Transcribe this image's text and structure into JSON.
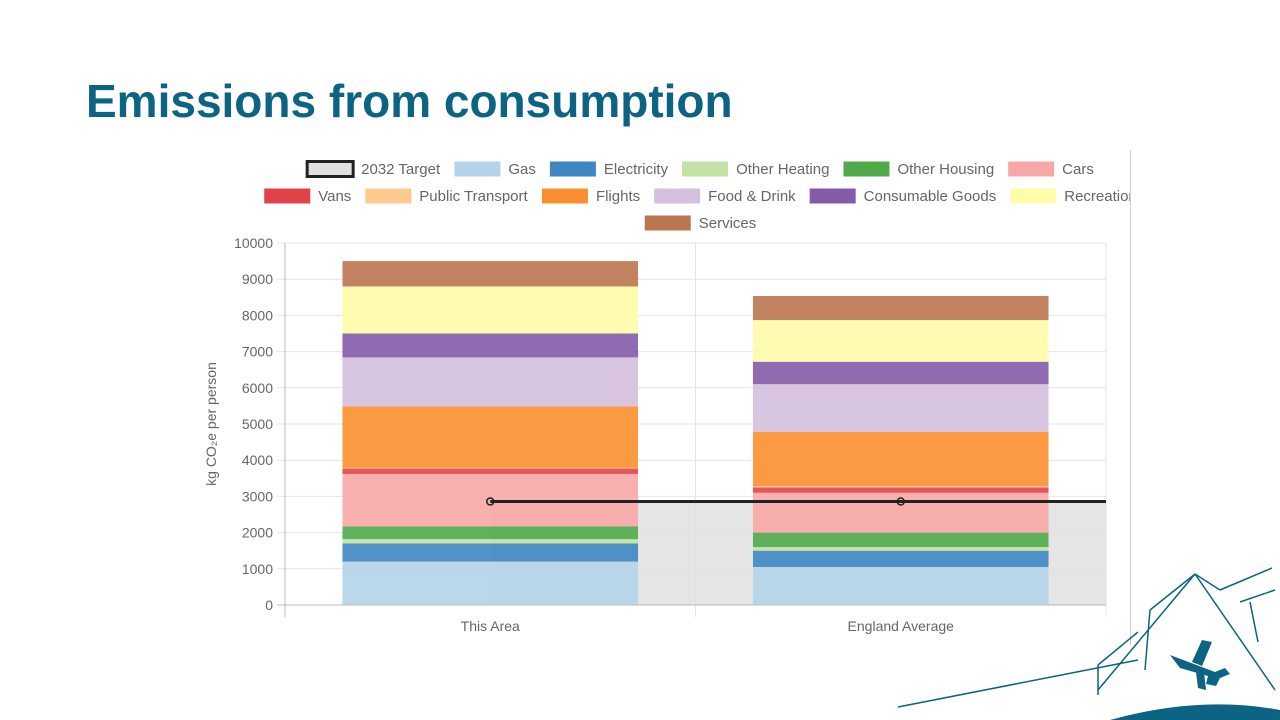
{
  "slide": {
    "title": "Emissions from consumption"
  },
  "chart_data": {
    "type": "bar",
    "stacked": true,
    "categories": [
      "This Area",
      "England Average"
    ],
    "ylabel": "kg CO₂e per person",
    "xlabel": "",
    "ylim": [
      0,
      10000
    ],
    "yticks": [
      0,
      1000,
      2000,
      3000,
      4000,
      5000,
      6000,
      7000,
      8000,
      9000,
      10000
    ],
    "grid": true,
    "legend_position": "top",
    "target": {
      "name": "2032 Target",
      "value": 2860,
      "color": "#222222",
      "fill": "#e0e0e0"
    },
    "series": [
      {
        "name": "Gas",
        "color": "#b3d4e8",
        "values": [
          1200,
          1050
        ]
      },
      {
        "name": "Electricity",
        "color": "#3e87c2",
        "values": [
          500,
          450
        ]
      },
      {
        "name": "Other Heating",
        "color": "#c2e3a3",
        "values": [
          120,
          100
        ]
      },
      {
        "name": "Other Housing",
        "color": "#4fab4a",
        "values": [
          350,
          400
        ]
      },
      {
        "name": "Cars",
        "color": "#f7a8a6",
        "values": [
          1450,
          1100
        ]
      },
      {
        "name": "Vans",
        "color": "#e24249",
        "values": [
          150,
          150
        ]
      },
      {
        "name": "Public Transport",
        "color": "#fdca8e",
        "values": [
          20,
          30
        ]
      },
      {
        "name": "Flights",
        "color": "#fb8f2f",
        "values": [
          1700,
          1500
        ]
      },
      {
        "name": "Food & Drink",
        "color": "#d4c0de",
        "values": [
          1350,
          1320
        ]
      },
      {
        "name": "Consumable Goods",
        "color": "#845ba8",
        "values": [
          660,
          620
        ]
      },
      {
        "name": "Recreation",
        "color": "#fffca8",
        "values": [
          1300,
          1150
        ]
      },
      {
        "name": "Services",
        "color": "#bd7450",
        "values": [
          700,
          665
        ]
      }
    ]
  }
}
